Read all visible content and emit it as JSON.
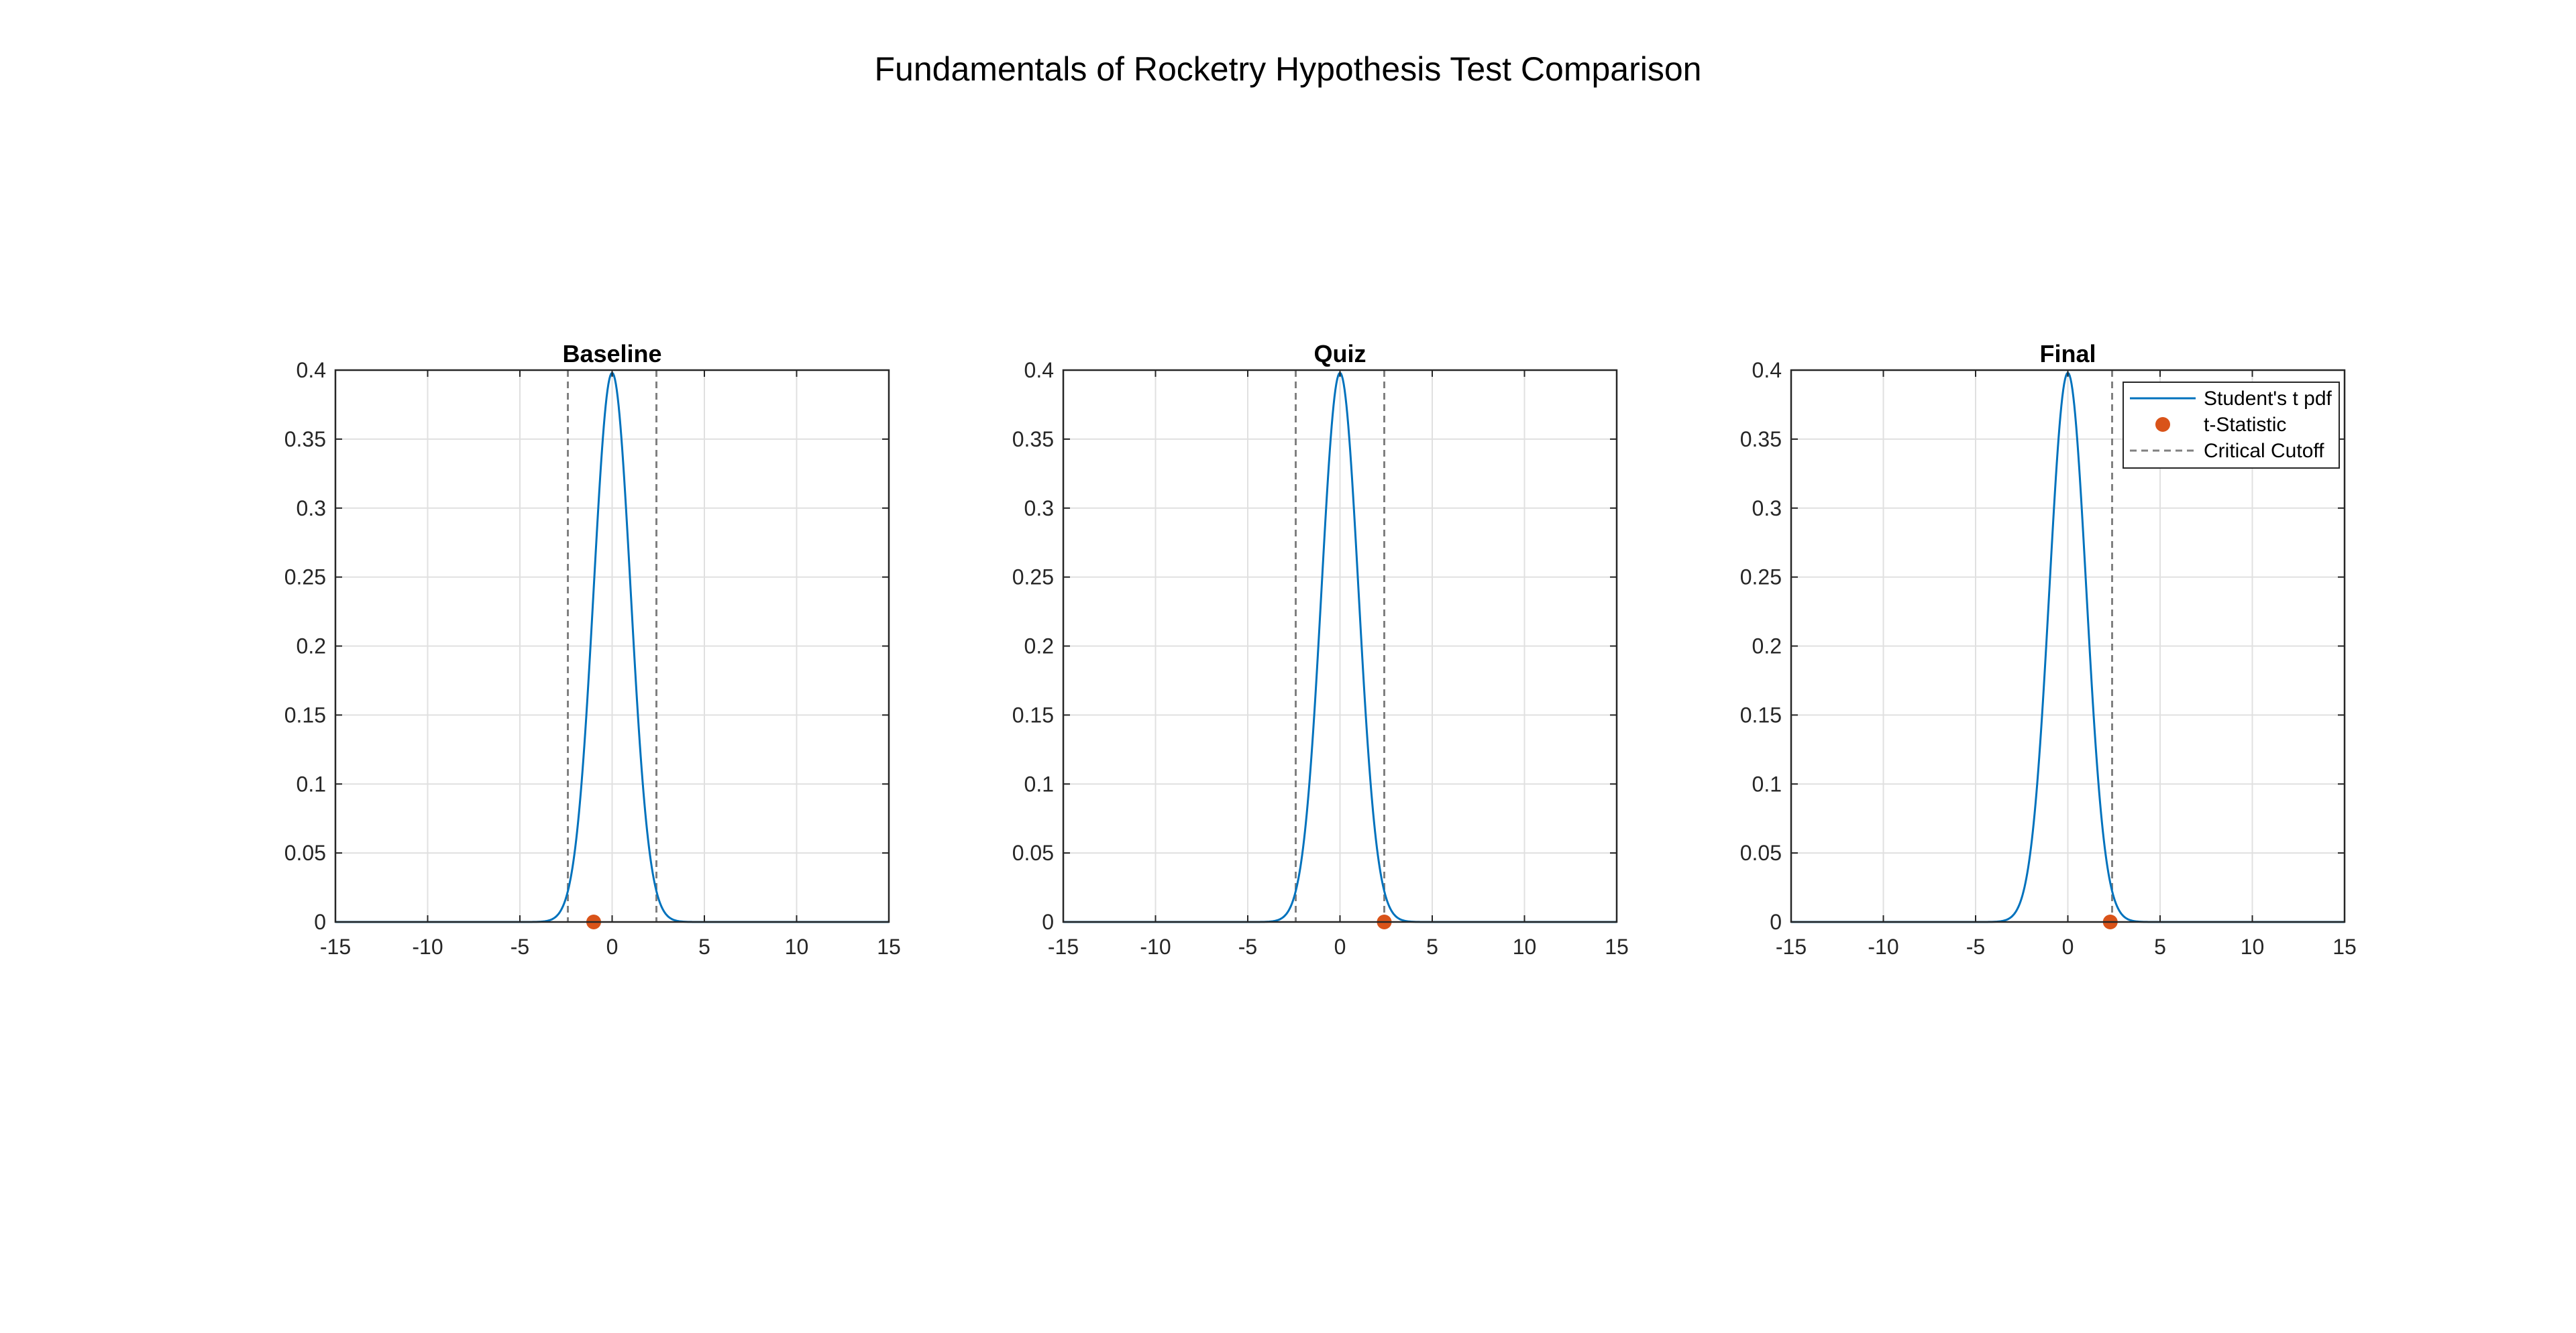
{
  "figure": {
    "title": "Fundamentals of Rocketry Hypothesis Test Comparison"
  },
  "colors": {
    "pdf_line": "#0072BD",
    "t_statistic": "#D95319",
    "critical_cutoff": "#808080",
    "grid": "#E0E0E0",
    "axes": "#262626"
  },
  "chart_data": [
    {
      "type": "line",
      "title": "Baseline",
      "xlabel": "",
      "ylabel": "",
      "xlim": [
        -15,
        15
      ],
      "ylim": [
        0,
        0.4
      ],
      "xticks": [
        -15,
        -10,
        -5,
        0,
        5,
        10,
        15
      ],
      "yticks": [
        0,
        0.05,
        0.1,
        0.15,
        0.2,
        0.25,
        0.3,
        0.35,
        0.4
      ],
      "grid": true,
      "series": [
        {
          "kind": "line",
          "distribution": "student-t",
          "peak": 0.398,
          "center": 0
        },
        {
          "kind": "marker",
          "x": [
            -1.0
          ],
          "y": [
            0
          ]
        },
        {
          "kind": "vline",
          "style": "dashed",
          "x": [
            -2.4,
            2.4
          ]
        }
      ]
    },
    {
      "type": "line",
      "title": "Quiz",
      "xlabel": "",
      "ylabel": "",
      "xlim": [
        -15,
        15
      ],
      "ylim": [
        0,
        0.4
      ],
      "xticks": [
        -15,
        -10,
        -5,
        0,
        5,
        10,
        15
      ],
      "yticks": [
        0,
        0.05,
        0.1,
        0.15,
        0.2,
        0.25,
        0.3,
        0.35,
        0.4
      ],
      "grid": true,
      "series": [
        {
          "kind": "line",
          "distribution": "student-t",
          "peak": 0.398,
          "center": 0
        },
        {
          "kind": "marker",
          "x": [
            2.4
          ],
          "y": [
            0
          ]
        },
        {
          "kind": "vline",
          "style": "dashed",
          "x": [
            -2.4,
            2.4
          ]
        }
      ]
    },
    {
      "type": "line",
      "title": "Final",
      "xlabel": "",
      "ylabel": "",
      "xlim": [
        -15,
        15
      ],
      "ylim": [
        0,
        0.4
      ],
      "xticks": [
        -15,
        -10,
        -5,
        0,
        5,
        10,
        15
      ],
      "yticks": [
        0,
        0.05,
        0.1,
        0.15,
        0.2,
        0.25,
        0.3,
        0.35,
        0.4
      ],
      "grid": true,
      "legend": {
        "placement": "top-right",
        "entries": [
          "Student's t pdf",
          "t-Statistic",
          "Critical Cutoff"
        ]
      },
      "series": [
        {
          "kind": "line",
          "distribution": "student-t",
          "peak": 0.398,
          "center": 0
        },
        {
          "kind": "marker",
          "x": [
            2.3
          ],
          "y": [
            0
          ]
        },
        {
          "kind": "vline",
          "style": "dashed",
          "x": [
            2.4
          ]
        }
      ]
    }
  ]
}
